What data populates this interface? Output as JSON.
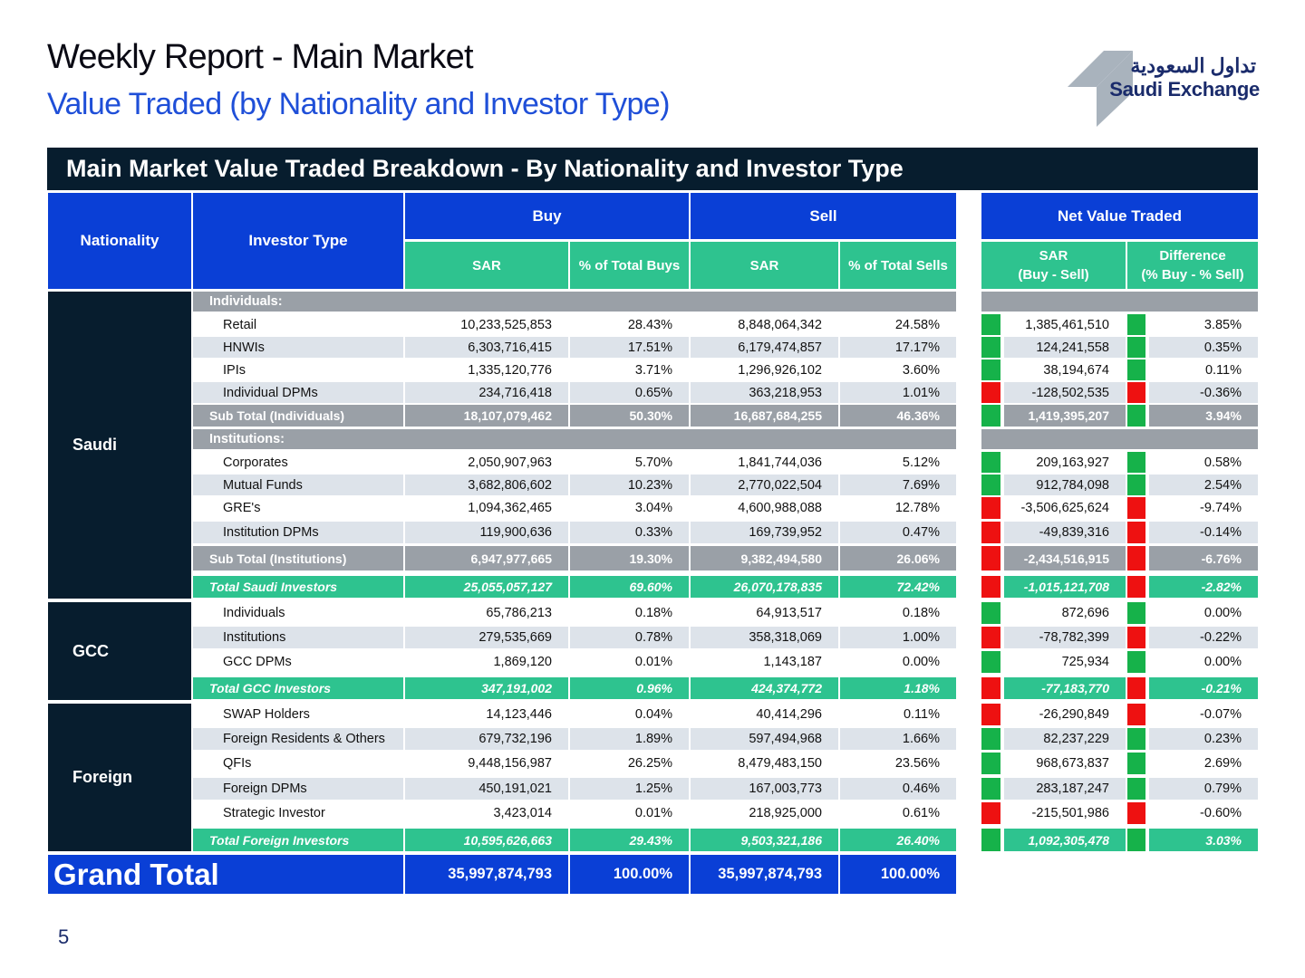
{
  "header": {
    "title": "Weekly Report - Main Market",
    "subtitle": "Value Traded (by Nationality and Investor Type)",
    "logo_arabic": "تداول السعودية",
    "logo_english": "Saudi Exchange"
  },
  "table": {
    "banner": "Main Market Value Traded Breakdown - By Nationality and Investor Type",
    "headers": {
      "nationality": "Nationality",
      "investor_type": "Investor Type",
      "buy": "Buy",
      "sell": "Sell",
      "net": "Net Value Traded",
      "buy_sar": "SAR",
      "buy_pct": "% of Total Buys",
      "sell_sar": "SAR",
      "sell_pct": "% of Total Sells",
      "net_sar_line1": "SAR",
      "net_sar_line2": "(Buy - Sell)",
      "net_diff_line1": "Difference",
      "net_diff_line2": "(% Buy - % Sell)"
    },
    "colors": {
      "positive": "#16b24a",
      "negative": "#ee1111",
      "header_blue": "#0a3fd6",
      "green": "#2ec38f",
      "navy": "#071d2e",
      "grey": "#9aa0a7",
      "band": "#dde3ea"
    },
    "groups": [
      {
        "name": "Saudi"
      },
      {
        "name": "GCC"
      },
      {
        "name": "Foreign"
      }
    ],
    "rows": [
      {
        "kind": "section",
        "label": "Individuals:"
      },
      {
        "kind": "data",
        "label": "Retail",
        "buy": "10,233,525,853",
        "buy_pct": "28.43%",
        "sell": "8,848,064,342",
        "sell_pct": "24.58%",
        "net": "1,385,461,510",
        "diff": "3.85%",
        "sign": "positive"
      },
      {
        "kind": "data",
        "label": "HNWIs",
        "buy": "6,303,716,415",
        "buy_pct": "17.51%",
        "sell": "6,179,474,857",
        "sell_pct": "17.17%",
        "net": "124,241,558",
        "diff": "0.35%",
        "sign": "positive"
      },
      {
        "kind": "data",
        "label": "IPIs",
        "buy": "1,335,120,776",
        "buy_pct": "3.71%",
        "sell": "1,296,926,102",
        "sell_pct": "3.60%",
        "net": "38,194,674",
        "diff": "0.11%",
        "sign": "positive"
      },
      {
        "kind": "data",
        "label": "Individual DPMs",
        "buy": "234,716,418",
        "buy_pct": "0.65%",
        "sell": "363,218,953",
        "sell_pct": "1.01%",
        "net": "-128,502,535",
        "diff": "-0.36%",
        "sign": "negative"
      },
      {
        "kind": "subtotal",
        "label": "Sub Total (Individuals)",
        "buy": "18,107,079,462",
        "buy_pct": "50.30%",
        "sell": "16,687,684,255",
        "sell_pct": "46.36%",
        "net": "1,419,395,207",
        "diff": "3.94%",
        "sign": "positive"
      },
      {
        "kind": "section",
        "label": "Institutions:"
      },
      {
        "kind": "data",
        "label": "Corporates",
        "buy": "2,050,907,963",
        "buy_pct": "5.70%",
        "sell": "1,841,744,036",
        "sell_pct": "5.12%",
        "net": "209,163,927",
        "diff": "0.58%",
        "sign": "positive"
      },
      {
        "kind": "data",
        "label": "Mutual Funds",
        "buy": "3,682,806,602",
        "buy_pct": "10.23%",
        "sell": "2,770,022,504",
        "sell_pct": "7.69%",
        "net": "912,784,098",
        "diff": "2.54%",
        "sign": "positive"
      },
      {
        "kind": "data",
        "label": "GRE's",
        "buy": "1,094,362,465",
        "buy_pct": "3.04%",
        "sell": "4,600,988,088",
        "sell_pct": "12.78%",
        "net": "-3,506,625,624",
        "diff": "-9.74%",
        "sign": "negative"
      },
      {
        "kind": "data",
        "label": "Institution DPMs",
        "buy": "119,900,636",
        "buy_pct": "0.33%",
        "sell": "169,739,952",
        "sell_pct": "0.47%",
        "net": "-49,839,316",
        "diff": "-0.14%",
        "sign": "negative"
      },
      {
        "kind": "subtotal",
        "label": "Sub Total (Institutions)",
        "buy": "6,947,977,665",
        "buy_pct": "19.30%",
        "sell": "9,382,494,580",
        "sell_pct": "26.06%",
        "net": "-2,434,516,915",
        "diff": "-6.76%",
        "sign": "negative"
      },
      {
        "kind": "total",
        "label": "Total Saudi Investors",
        "buy": "25,055,057,127",
        "buy_pct": "69.60%",
        "sell": "26,070,178,835",
        "sell_pct": "72.42%",
        "net": "-1,015,121,708",
        "diff": "-2.82%",
        "sign": "negative"
      },
      {
        "kind": "data",
        "label": "Individuals",
        "buy": "65,786,213",
        "buy_pct": "0.18%",
        "sell": "64,913,517",
        "sell_pct": "0.18%",
        "net": "872,696",
        "diff": "0.00%",
        "sign": "positive"
      },
      {
        "kind": "data",
        "label": "Institutions",
        "buy": "279,535,669",
        "buy_pct": "0.78%",
        "sell": "358,318,069",
        "sell_pct": "1.00%",
        "net": "-78,782,399",
        "diff": "-0.22%",
        "sign": "negative"
      },
      {
        "kind": "data",
        "label": "GCC DPMs",
        "buy": "1,869,120",
        "buy_pct": "0.01%",
        "sell": "1,143,187",
        "sell_pct": "0.00%",
        "net": "725,934",
        "diff": "0.00%",
        "sign": "positive"
      },
      {
        "kind": "total",
        "label": "Total GCC Investors",
        "buy": "347,191,002",
        "buy_pct": "0.96%",
        "sell": "424,374,772",
        "sell_pct": "1.18%",
        "net": "-77,183,770",
        "diff": "-0.21%",
        "sign": "negative"
      },
      {
        "kind": "data",
        "label": "SWAP Holders",
        "buy": "14,123,446",
        "buy_pct": "0.04%",
        "sell": "40,414,296",
        "sell_pct": "0.11%",
        "net": "-26,290,849",
        "diff": "-0.07%",
        "sign": "negative"
      },
      {
        "kind": "data",
        "label": "Foreign Residents & Others",
        "buy": "679,732,196",
        "buy_pct": "1.89%",
        "sell": "597,494,968",
        "sell_pct": "1.66%",
        "net": "82,237,229",
        "diff": "0.23%",
        "sign": "positive"
      },
      {
        "kind": "data",
        "label": "QFIs",
        "buy": "9,448,156,987",
        "buy_pct": "26.25%",
        "sell": "8,479,483,150",
        "sell_pct": "23.56%",
        "net": "968,673,837",
        "diff": "2.69%",
        "sign": "positive"
      },
      {
        "kind": "data",
        "label": "Foreign DPMs",
        "buy": "450,191,021",
        "buy_pct": "1.25%",
        "sell": "167,003,773",
        "sell_pct": "0.46%",
        "net": "283,187,247",
        "diff": "0.79%",
        "sign": "positive"
      },
      {
        "kind": "data",
        "label": "Strategic Investor",
        "buy": "3,423,014",
        "buy_pct": "0.01%",
        "sell": "218,925,000",
        "sell_pct": "0.61%",
        "net": "-215,501,986",
        "diff": "-0.60%",
        "sign": "negative"
      },
      {
        "kind": "total",
        "label": "Total Foreign Investors",
        "buy": "10,595,626,663",
        "buy_pct": "29.43%",
        "sell": "9,503,321,186",
        "sell_pct": "26.40%",
        "net": "1,092,305,478",
        "diff": "3.03%",
        "sign": "positive"
      }
    ],
    "grand_total": {
      "label": "Grand Total",
      "buy": "35,997,874,793",
      "buy_pct": "100.00%",
      "sell": "35,997,874,793",
      "sell_pct": "100.00%"
    }
  },
  "footer": {
    "page_number": "5"
  }
}
